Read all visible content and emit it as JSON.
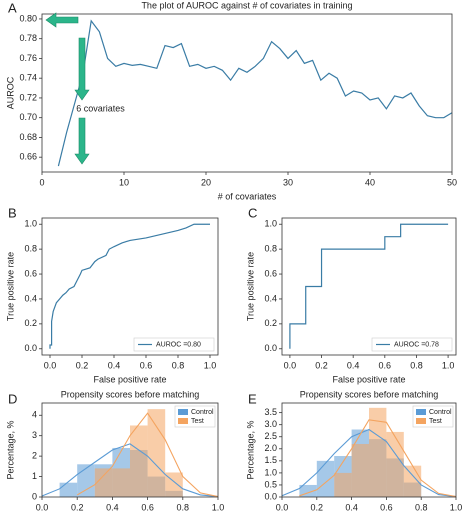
{
  "chart_data": [
    {
      "type": "line",
      "label": "A",
      "title": "The plot of AUROC against # of covariates in training",
      "xlabel": "# of covariates",
      "ylabel": "AUROC",
      "annotation": "6 covariates",
      "color": "#3a7ca5",
      "x": [
        2,
        3,
        4,
        5,
        6,
        7,
        8,
        9,
        10,
        11,
        12,
        13,
        14,
        15,
        16,
        17,
        18,
        19,
        20,
        21,
        22,
        23,
        24,
        25,
        26,
        27,
        28,
        29,
        30,
        31,
        32,
        33,
        34,
        35,
        36,
        37,
        38,
        39,
        40,
        41,
        42,
        43,
        44,
        45,
        46,
        47,
        48,
        49,
        50
      ],
      "values": [
        0.651,
        0.685,
        0.715,
        0.745,
        0.798,
        0.787,
        0.76,
        0.752,
        0.755,
        0.753,
        0.754,
        0.752,
        0.75,
        0.773,
        0.771,
        0.775,
        0.752,
        0.754,
        0.75,
        0.752,
        0.748,
        0.738,
        0.75,
        0.746,
        0.752,
        0.76,
        0.777,
        0.77,
        0.76,
        0.768,
        0.755,
        0.758,
        0.738,
        0.745,
        0.74,
        0.722,
        0.727,
        0.725,
        0.718,
        0.72,
        0.709,
        0.722,
        0.72,
        0.725,
        0.712,
        0.702,
        0.7,
        0.7,
        0.705
      ],
      "xlim": [
        0,
        50
      ],
      "xticks": [
        0,
        10,
        20,
        30,
        40,
        50
      ],
      "ylim": [
        0.645,
        0.805
      ],
      "yticks": [
        0.66,
        0.68,
        {
          "value": 0.7,
          "label": "0.70"
        },
        0.72,
        0.74,
        0.76,
        0.78,
        {
          "value": 0.8,
          "label": "0.80"
        }
      ]
    },
    {
      "type": "line",
      "label": "B",
      "xlabel": "False positive rate",
      "ylabel": "True positive rate",
      "legend": "lower right",
      "x": [
        0,
        0,
        0.01,
        0.01,
        0.02,
        0.04,
        0.06,
        0.08,
        0.1,
        0.12,
        0.15,
        0.17,
        0.19,
        0.2,
        0.25,
        0.28,
        0.3,
        0.35,
        0.37,
        0.4,
        0.45,
        0.5,
        0.6,
        0.7,
        0.8,
        0.85,
        0.9,
        1.0
      ],
      "series": [
        {
          "name": "AUROC =0.80",
          "color": "#3a7ca5",
          "values": [
            0,
            0.03,
            0.03,
            0.22,
            0.3,
            0.37,
            0.4,
            0.43,
            0.45,
            0.48,
            0.5,
            0.55,
            0.6,
            0.63,
            0.65,
            0.7,
            0.72,
            0.75,
            0.8,
            0.82,
            0.85,
            0.87,
            0.89,
            0.92,
            0.95,
            0.97,
            1.0,
            1.0
          ]
        }
      ],
      "xlim": [
        -0.05,
        1.05
      ],
      "xticks": [
        {
          "value": 0,
          "label": "0.0"
        },
        0.2,
        0.4,
        0.6,
        0.8,
        {
          "value": 1,
          "label": "1.0"
        }
      ],
      "ylim": [
        -0.05,
        1.05
      ],
      "yticks": [
        {
          "value": 0,
          "label": "0.0"
        },
        0.2,
        0.4,
        0.6,
        0.8,
        {
          "value": 1,
          "label": "1.0"
        }
      ]
    },
    {
      "type": "line",
      "label": "C",
      "xlabel": "False positive rate",
      "ylabel": "True positive rate",
      "legend": "lower right",
      "x": [
        0,
        0,
        0.1,
        0.1,
        0.2,
        0.2,
        0.6,
        0.6,
        0.7,
        0.7,
        1.0
      ],
      "series": [
        {
          "name": "AUROC =0.78",
          "color": "#3a7ca5",
          "values": [
            0,
            0.2,
            0.2,
            0.5,
            0.5,
            0.8,
            0.8,
            0.9,
            0.9,
            1.0,
            1.0
          ]
        }
      ],
      "xlim": [
        -0.05,
        1.05
      ],
      "xticks": [
        {
          "value": 0,
          "label": "0.0"
        },
        0.2,
        0.4,
        0.6,
        0.8,
        {
          "value": 1,
          "label": "1.0"
        }
      ],
      "ylim": [
        -0.05,
        1.05
      ],
      "yticks": [
        {
          "value": 0,
          "label": "0.0"
        },
        0.2,
        0.4,
        0.6,
        0.8,
        {
          "value": 1,
          "label": "1.0"
        }
      ]
    },
    {
      "type": "histogram",
      "label": "D",
      "title": "Propensity scores before matching",
      "ylabel": "Percentage, %",
      "legend": "upper right",
      "series": [
        {
          "name": "Control",
          "color": "#5b9bd5",
          "bins": [
            0.1,
            0.2,
            0.3,
            0.4,
            0.5,
            0.6,
            0.7,
            0.8
          ],
          "values": [
            0.7,
            1.6,
            1.6,
            2.4,
            2.3,
            1.0,
            0.3
          ],
          "kde_x": [
            0,
            0.1,
            0.2,
            0.3,
            0.4,
            0.5,
            0.6,
            0.7,
            0.8,
            0.9,
            1.0
          ],
          "kde_values": [
            0.05,
            0.4,
            1.1,
            1.7,
            2.3,
            2.6,
            2.0,
            1.1,
            0.4,
            0.1,
            0.02
          ]
        },
        {
          "name": "Test",
          "color": "#f4a460",
          "bins": [
            0.3,
            0.4,
            0.5,
            0.6,
            0.7,
            0.8
          ],
          "values": [
            1.4,
            1.4,
            3.5,
            4.3,
            1.2
          ],
          "kde_x": [
            0.2,
            0.3,
            0.4,
            0.5,
            0.6,
            0.7,
            0.8,
            0.9,
            1.0
          ],
          "kde_values": [
            0.1,
            0.6,
            1.5,
            3.0,
            4.1,
            2.8,
            1.0,
            0.2,
            0.02
          ]
        }
      ],
      "xlim": [
        0,
        1
      ],
      "xticks": [
        {
          "value": 0,
          "label": "0.0"
        },
        0.2,
        0.4,
        0.6,
        0.8,
        {
          "value": 1,
          "label": "1.0"
        }
      ],
      "ylim": [
        0,
        4.6
      ],
      "yticks": [
        0,
        1,
        2,
        3,
        4
      ]
    },
    {
      "type": "histogram",
      "label": "E",
      "title": "Propensity scores before matching",
      "ylabel": "Percentage, %",
      "legend": "upper right",
      "series": [
        {
          "name": "Control",
          "color": "#5b9bd5",
          "bins": [
            0.1,
            0.2,
            0.3,
            0.4,
            0.5,
            0.6,
            0.7,
            0.8
          ],
          "values": [
            0.5,
            1.5,
            1.7,
            2.8,
            2.4,
            1.6,
            0.6
          ],
          "kde_x": [
            0,
            0.1,
            0.2,
            0.3,
            0.4,
            0.5,
            0.6,
            0.7,
            0.8,
            0.9,
            1.0
          ],
          "kde_values": [
            0.05,
            0.35,
            1.0,
            1.8,
            2.5,
            2.8,
            2.3,
            1.3,
            0.5,
            0.1,
            0.02
          ]
        },
        {
          "name": "Test",
          "color": "#f4a460",
          "bins": [
            0.3,
            0.4,
            0.5,
            0.6,
            0.7,
            0.8
          ],
          "values": [
            1.0,
            2.2,
            3.7,
            2.7,
            1.3
          ],
          "kde_x": [
            0.1,
            0.2,
            0.3,
            0.4,
            0.5,
            0.6,
            0.7,
            0.8,
            0.9,
            1.0
          ],
          "kde_values": [
            0.05,
            0.3,
            0.9,
            2.0,
            3.2,
            3.1,
            1.9,
            0.7,
            0.15,
            0.02
          ]
        }
      ],
      "xlim": [
        0,
        1
      ],
      "xticks": [
        {
          "value": 0,
          "label": "0.0"
        },
        0.2,
        0.4,
        0.6,
        0.8,
        {
          "value": 1,
          "label": "1.0"
        }
      ],
      "ylim": [
        0,
        3.9
      ],
      "yticks": [
        {
          "value": 0,
          "label": "0.0"
        },
        0.5,
        {
          "value": 1,
          "label": "1.0"
        },
        1.5,
        {
          "value": 2,
          "label": "2.0"
        },
        2.5,
        {
          "value": 3,
          "label": "3.0"
        },
        3.5
      ]
    }
  ]
}
